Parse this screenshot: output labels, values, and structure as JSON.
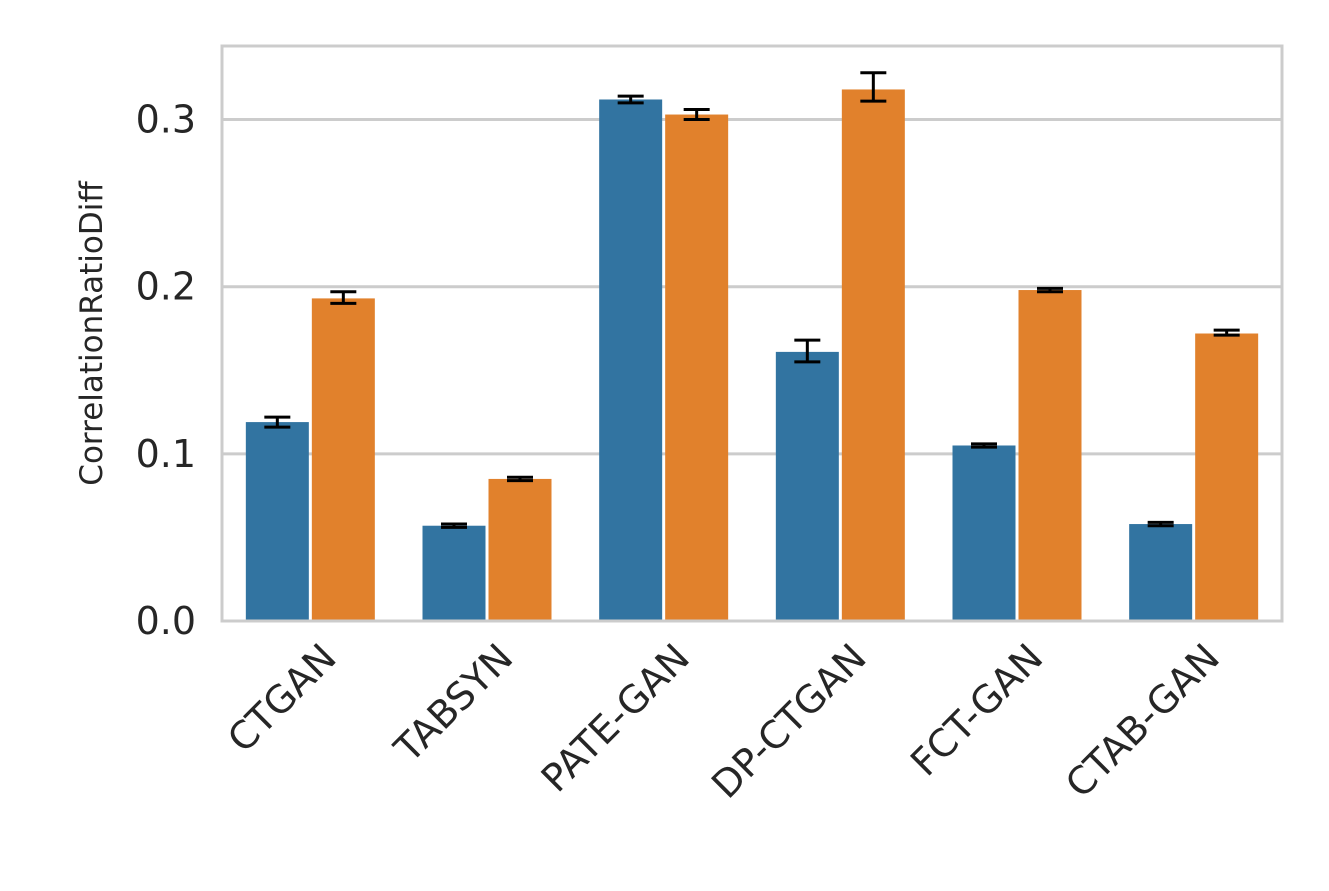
{
  "chart_data": {
    "type": "bar",
    "title": "",
    "xlabel": "",
    "ylabel": "CorrelationRatioDiff",
    "categories": [
      "CTGAN",
      "TABSYN",
      "PATE-GAN",
      "DP-CTGAN",
      "FCT-GAN",
      "CTAB-GAN"
    ],
    "series": [
      {
        "color": "#3274a1",
        "values": [
          0.119,
          0.057,
          0.312,
          0.161,
          0.105,
          0.058
        ],
        "errors": [
          [
            0.116,
            0.122
          ],
          [
            0.056,
            0.058
          ],
          [
            0.31,
            0.314
          ],
          [
            0.155,
            0.168
          ],
          [
            0.104,
            0.106
          ],
          [
            0.057,
            0.059
          ]
        ]
      },
      {
        "color": "#e1812c",
        "values": [
          0.193,
          0.085,
          0.303,
          0.318,
          0.198,
          0.172
        ],
        "errors": [
          [
            0.19,
            0.197
          ],
          [
            0.084,
            0.086
          ],
          [
            0.3,
            0.306
          ],
          [
            0.311,
            0.328
          ],
          [
            0.197,
            0.199
          ],
          [
            0.171,
            0.174
          ]
        ]
      }
    ],
    "ylim": [
      0,
      0.344
    ],
    "yticks": [
      0.0,
      0.1,
      0.2,
      0.3
    ],
    "ytick_labels": [
      "0.0",
      "0.1",
      "0.2",
      "0.3"
    ],
    "grid": "horizontal",
    "legend": "none"
  }
}
